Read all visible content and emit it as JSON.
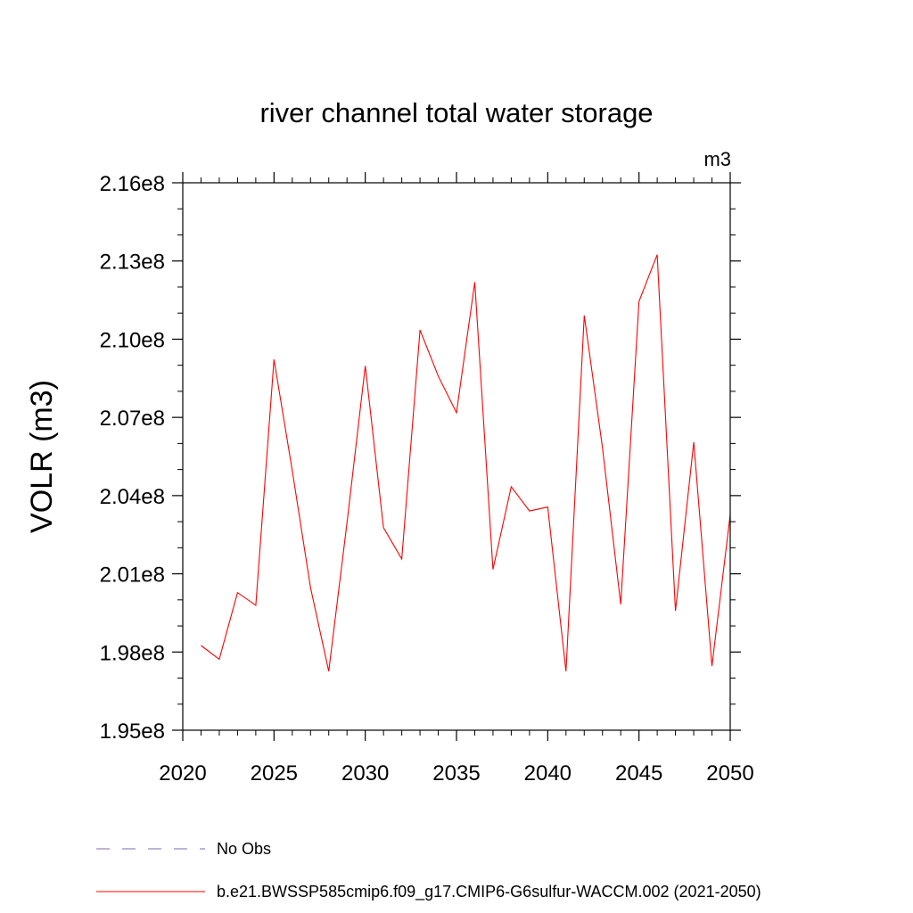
{
  "chart_data": {
    "type": "line",
    "title": "river channel total water storage",
    "units_label": "m3",
    "ylabel": "VOLR  (m3)",
    "xlabel": "",
    "xlim": [
      2020,
      2050
    ],
    "ylim": [
      195000000.0,
      216000000.0
    ],
    "x_ticks": [
      2020,
      2025,
      2030,
      2035,
      2040,
      2045,
      2050
    ],
    "x_tick_labels": [
      "2020",
      "2025",
      "2030",
      "2035",
      "2040",
      "2045",
      "2050"
    ],
    "y_ticks": [
      195000000.0,
      198000000.0,
      201000000.0,
      204000000.0,
      207000000.0,
      210000000.0,
      213000000.0,
      216000000.0
    ],
    "y_tick_labels": [
      "1.95e8",
      "1.98e8",
      "2.01e8",
      "2.04e8",
      "2.07e8",
      "2.10e8",
      "2.13e8",
      "2.16e8"
    ],
    "grid": false,
    "legend_placement": "bottom",
    "series": [
      {
        "name": "b.e21.BWSSP585cmip6.f09_g17.CMIP6-G6sulfur-WACCM.002 (2021-2050)",
        "color": "#ff0000",
        "style": "solid",
        "x": [
          2021,
          2022,
          2023,
          2024,
          2025,
          2026,
          2027,
          2028,
          2029,
          2030,
          2031,
          2032,
          2033,
          2034,
          2035,
          2036,
          2037,
          2038,
          2039,
          2040,
          2041,
          2042,
          2043,
          2044,
          2045,
          2046,
          2047,
          2048,
          2049,
          2050
        ],
        "values": [
          198250000.0,
          197720000.0,
          200280000.0,
          199790000.0,
          209220000.0,
          204960000.0,
          200470000.0,
          197260000.0,
          202960000.0,
          208980000.0,
          202770000.0,
          201570000.0,
          210350000.0,
          208590000.0,
          207180000.0,
          212190000.0,
          201170000.0,
          204340000.0,
          203410000.0,
          203560000.0,
          197260000.0,
          210910000.0,
          205850000.0,
          199830000.0,
          211450000.0,
          213240000.0,
          199580000.0,
          206050000.0,
          197460000.0,
          203270000.0
        ]
      },
      {
        "name": "No Obs",
        "color": "#7b68b0",
        "style": "dashed",
        "x": [],
        "values": []
      }
    ]
  }
}
